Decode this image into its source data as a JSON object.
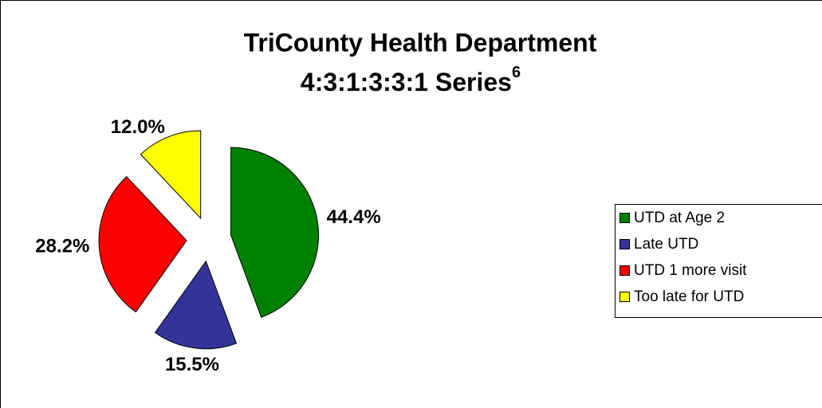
{
  "chart_data": {
    "type": "pie",
    "title": "TriCounty Health Department",
    "subtitle": "4:3:1:3:3:1 Series",
    "subtitle_superscript": "6",
    "categories": [
      "UTD at Age 2",
      "Late UTD",
      "UTD 1 more visit",
      "Too late for UTD"
    ],
    "values": [
      44.4,
      15.5,
      28.2,
      12.0
    ],
    "value_labels": [
      "44.4%",
      "15.5%",
      "28.2%",
      "12.0%"
    ],
    "colors": [
      "#008000",
      "#333399",
      "#ff0000",
      "#ffff00"
    ],
    "legend": "right"
  }
}
